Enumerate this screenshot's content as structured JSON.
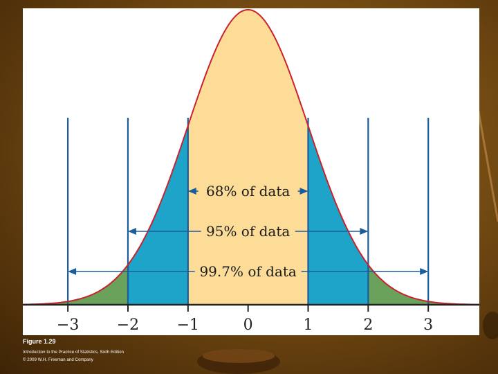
{
  "caption": {
    "figure_label": "Figure 1.29",
    "book_title": "Introduction to the Practice of Statistics, Sixth Edition",
    "copyright": "© 2009 W.H. Freeman and Company"
  },
  "colors": {
    "curve": "#c8232c",
    "center_fill": "#fcdc96",
    "one_sd_fill": "#1ea4c8",
    "two_sd_fill": "#6aa25c",
    "lines": "#1a5c9c",
    "axis": "#222222"
  },
  "chart_data": {
    "type": "area",
    "distribution": "normal",
    "mean": 0,
    "sd": 1,
    "xlim": [
      -3.75,
      3.85
    ],
    "x_ticks": [
      -3,
      -2,
      -1,
      0,
      1,
      2,
      3
    ],
    "x_tick_labels": [
      "−3",
      "−2",
      "−1",
      "0",
      "1",
      "2",
      "3"
    ],
    "bands": [
      {
        "label": "68% of data",
        "from": -1,
        "to": 1
      },
      {
        "label": "95% of data",
        "from": -2,
        "to": 2
      },
      {
        "label": "99.7% of data",
        "from": -3,
        "to": 3
      }
    ],
    "title": "",
    "xlabel": "",
    "ylabel": ""
  }
}
